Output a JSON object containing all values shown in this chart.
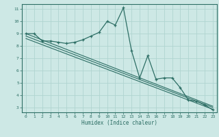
{
  "background_color": "#cde8e5",
  "grid_color": "#b0d4d0",
  "line_color": "#2d6e65",
  "marker_color": "#2d6e65",
  "xlabel": "Humidex (Indice chaleur)",
  "xlim": [
    -0.5,
    23.5
  ],
  "ylim": [
    2.6,
    11.4
  ],
  "xticks": [
    0,
    1,
    2,
    3,
    4,
    5,
    6,
    7,
    8,
    9,
    10,
    11,
    12,
    13,
    14,
    15,
    16,
    17,
    18,
    19,
    20,
    21,
    22,
    23
  ],
  "yticks": [
    3,
    4,
    5,
    6,
    7,
    8,
    9,
    10,
    11
  ],
  "curve1_x": [
    0,
    1,
    2,
    3,
    4,
    5,
    6,
    7,
    8,
    9,
    10,
    11,
    12,
    13,
    14,
    15,
    16,
    17,
    18,
    19,
    20,
    21,
    22,
    23
  ],
  "curve1_y": [
    9.0,
    9.0,
    8.4,
    8.4,
    8.3,
    8.2,
    8.3,
    8.5,
    8.8,
    9.1,
    10.0,
    9.7,
    11.1,
    7.6,
    5.4,
    7.2,
    5.3,
    5.4,
    5.4,
    4.6,
    3.6,
    3.5,
    3.2,
    2.8
  ],
  "line1_x": [
    0,
    23
  ],
  "line1_y": [
    9.0,
    3.1
  ],
  "line2_x": [
    0,
    23
  ],
  "line2_y": [
    8.8,
    3.0
  ],
  "line3_x": [
    0,
    23
  ],
  "line3_y": [
    8.6,
    2.85
  ]
}
